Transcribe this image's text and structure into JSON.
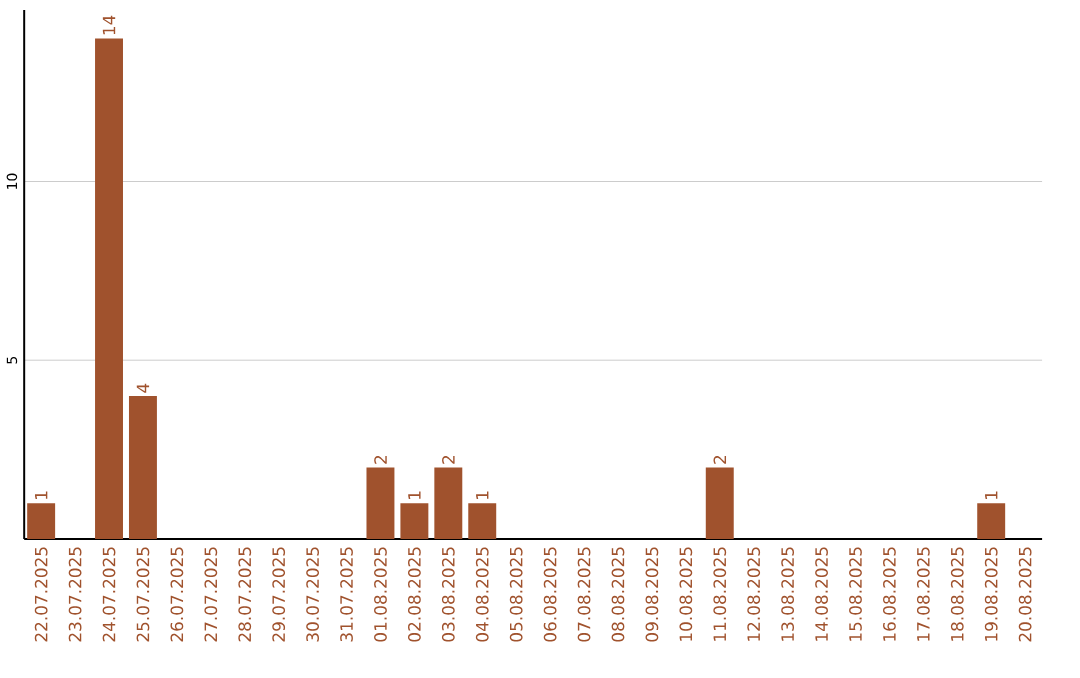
{
  "chart_data": {
    "type": "bar",
    "categories": [
      "22.07.2025",
      "23.07.2025",
      "24.07.2025",
      "25.07.2025",
      "26.07.2025",
      "27.07.2025",
      "28.07.2025",
      "29.07.2025",
      "30.07.2025",
      "31.07.2025",
      "01.08.2025",
      "02.08.2025",
      "03.08.2025",
      "04.08.2025",
      "05.08.2025",
      "06.08.2025",
      "07.08.2025",
      "08.08.2025",
      "09.08.2025",
      "10.08.2025",
      "11.08.2025",
      "12.08.2025",
      "13.08.2025",
      "14.08.2025",
      "15.08.2025",
      "16.08.2025",
      "17.08.2025",
      "18.08.2025",
      "19.08.2025",
      "20.08.2025"
    ],
    "values": [
      1,
      0,
      14,
      4,
      0,
      0,
      0,
      0,
      0,
      0,
      2,
      1,
      2,
      1,
      0,
      0,
      0,
      0,
      0,
      0,
      2,
      0,
      0,
      0,
      0,
      0,
      0,
      0,
      1,
      0
    ],
    "value_labels": [
      "1",
      null,
      "14",
      "4",
      null,
      null,
      null,
      null,
      null,
      null,
      "2",
      "1",
      "2",
      "1",
      null,
      null,
      null,
      null,
      null,
      null,
      "2",
      null,
      null,
      null,
      null,
      null,
      null,
      null,
      "1",
      null
    ],
    "color": "#a0522d",
    "ylim": [
      0,
      14.8
    ],
    "yticks": [
      5,
      10
    ],
    "grid": "y"
  }
}
